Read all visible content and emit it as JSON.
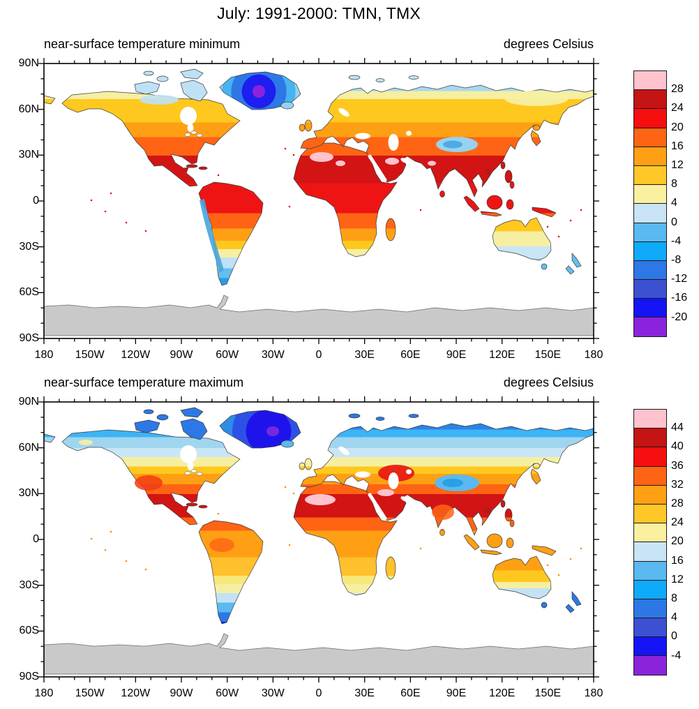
{
  "figure_title": "July: 1991-2000: TMN, TMX",
  "axes": {
    "x_tick_labels": [
      "180",
      "150W",
      "120W",
      "90W",
      "60W",
      "30W",
      "0",
      "30E",
      "60E",
      "90E",
      "120E",
      "150E",
      "180"
    ],
    "y_tick_labels": [
      "90N",
      "60N",
      "30N",
      "0",
      "30S",
      "60S",
      "90S"
    ]
  },
  "palette_hex_top_to_bottom": [
    "#FFC3CD",
    "#C41414",
    "#F50F0F",
    "#FF6414",
    "#FFA014",
    "#FFC828",
    "#FAF0A0",
    "#C8E4F5",
    "#5AB9F0",
    "#0FAAFA",
    "#2D78E6",
    "#3C50D2",
    "#1414F5",
    "#8C23DC"
  ],
  "panels": [
    {
      "subtitle_left": "near-surface temperature minimum",
      "subtitle_right": "degrees Celsius",
      "colorbar_labels": [
        "28",
        "24",
        "20",
        "16",
        "12",
        "8",
        "4",
        "0",
        "-4",
        "-8",
        "-12",
        "-16",
        "-20"
      ]
    },
    {
      "subtitle_left": "near-surface temperature maximum",
      "subtitle_right": "degrees Celsius",
      "colorbar_labels": [
        "44",
        "40",
        "36",
        "32",
        "28",
        "24",
        "20",
        "16",
        "12",
        "8",
        "4",
        "0",
        "-4"
      ]
    }
  ],
  "no_data": {
    "antarctica_fill": "#C9C9C9",
    "ocean_fill": "#FFFFFF"
  },
  "chart_data": {
    "type": "heatmap",
    "title": "July: 1991-2000: TMN, TMX",
    "projection": "global cylindrical equidistant (lat-lon), land only; ocean masked white",
    "x_axis": {
      "ticks": [
        "180",
        "150W",
        "120W",
        "90W",
        "60W",
        "30W",
        "0",
        "30E",
        "60E",
        "90E",
        "120E",
        "150E",
        "180"
      ],
      "minor_tick_every_deg": 10
    },
    "y_axis": {
      "ticks": [
        "90N",
        "60N",
        "30N",
        "0",
        "30S",
        "60S",
        "90S"
      ],
      "minor_tick_every_deg": 10
    },
    "colorbar_colors_top_to_bottom": [
      "#FFC3CD",
      "#C41414",
      "#F50F0F",
      "#FF6414",
      "#FFA014",
      "#FFC828",
      "#FAF0A0",
      "#C8E4F5",
      "#5AB9F0",
      "#0FAAFA",
      "#2D78E6",
      "#3C50D2",
      "#1414F5",
      "#8C23DC"
    ],
    "panels": [
      {
        "variable": "near-surface temperature minimum (TMN)",
        "units": "degrees Celsius",
        "contour_levels": [
          -20,
          -16,
          -12,
          -8,
          -4,
          0,
          4,
          8,
          12,
          16,
          20,
          24,
          28
        ],
        "approx_regional_values_C": {
          "Greenland interior": "-12 to below -20 (purple core)",
          "Canadian Arctic islands": "0 to 4",
          "Alaska and northern Canada": "4 to 12",
          "central US and Europe": "12 to 20",
          "Mexico, Sahara, Arabia, India, SE Asia": "20 to 28, pink spots above 28",
          "Amazon and Congo basins": "16 to 24",
          "Tibetan Plateau": "0 to 8",
          "NE Siberia": "4 to 12",
          "southern Africa and Australia (austral winter)": "0 to 12",
          "Patagonia": "-4 to 8",
          "Antarctica": "no data (gray)"
        }
      },
      {
        "variable": "near-surface temperature maximum (TMX)",
        "units": "degrees Celsius",
        "contour_levels": [
          -4,
          0,
          4,
          8,
          12,
          16,
          20,
          24,
          28,
          32,
          36,
          40,
          44
        ],
        "approx_regional_values_C": {
          "Greenland interior": "below -4 (purple spot) to 0",
          "Canadian Arctic islands": "0 to 8",
          "Alaska and northern Siberia coast": "8 to 16",
          "central US": "28 to 36 with red cores",
          "Sahara and Middle East": "40 to 44, pink cores above 44",
          "Mexico and Kazakhstan": "36 to 40",
          "Amazon, Congo, Indonesia": "28 to 32",
          "Tibetan Plateau": "8 to 16",
          "Australia (austral winter)": "12 to 28, cooler in south",
          "Patagonia": "0 to 12",
          "Antarctica": "no data (gray)"
        }
      }
    ]
  }
}
